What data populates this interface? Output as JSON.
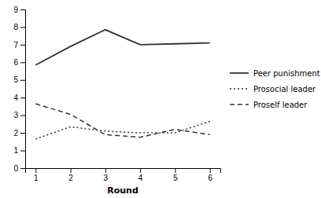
{
  "chart_data": {
    "type": "line",
    "x": [
      1,
      2,
      3,
      4,
      5,
      6
    ],
    "series": [
      {
        "name": "Peer punishment",
        "color": "#333333",
        "line_style": "solid",
        "values": [
          5.85,
          6.9,
          7.85,
          7.0,
          7.05,
          7.1
        ]
      },
      {
        "name": "Prosocial leader",
        "color": "#333333",
        "line_style": "dotted",
        "values": [
          1.65,
          2.35,
          2.1,
          2.0,
          2.0,
          2.65
        ]
      },
      {
        "name": "Proself leader",
        "color": "#333333",
        "line_style": "dashed",
        "values": [
          3.65,
          3.05,
          1.9,
          1.75,
          2.2,
          1.9
        ]
      }
    ],
    "xlabel": "Round",
    "xlim": [
      0.7,
      6.3
    ],
    "ylim": [
      0,
      9
    ],
    "xticks": [
      1,
      2,
      3,
      4,
      5,
      6
    ],
    "yticks": [
      0,
      1,
      2,
      3,
      4,
      5,
      6,
      7,
      8,
      9
    ],
    "grid": false,
    "legend": "right"
  }
}
